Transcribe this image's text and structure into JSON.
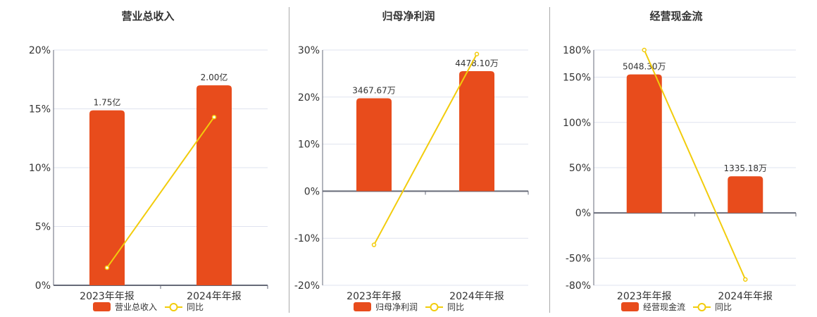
{
  "colors": {
    "bar": "#e84c1c",
    "line": "#f2cc0c",
    "grid": "#dfe3ef",
    "axis": "#666a78",
    "divider": "#aaaaaa"
  },
  "chart_data": [
    {
      "type": "bar+line",
      "title": "营业总收入",
      "categories": [
        "2023年年报",
        "2024年年报"
      ],
      "bar_series": {
        "name": "营业总收入",
        "values": [
          1.75,
          2.0
        ],
        "unit": "亿",
        "labels": [
          "1.75亿",
          "2.00亿"
        ]
      },
      "line_series": {
        "name": "同比",
        "values": [
          1.5,
          14.3
        ],
        "unit": "%"
      },
      "yticks": [
        "20%",
        "15%",
        "10%",
        "5%",
        "0%"
      ],
      "ylim": [
        0,
        20
      ],
      "grid": true,
      "legend": "bottom"
    },
    {
      "type": "bar+line",
      "title": "归母净利润",
      "categories": [
        "2023年年报",
        "2024年年报"
      ],
      "bar_series": {
        "name": "归母净利润",
        "values": [
          3467.67,
          4478.1
        ],
        "unit": "万",
        "labels": [
          "3467.67万",
          "4478.10万"
        ]
      },
      "line_series": {
        "name": "同比",
        "values": [
          -11.4,
          29.14
        ],
        "unit": "%"
      },
      "yticks": [
        "30%",
        "20%",
        "10%",
        "0%",
        "-10%",
        "-20%"
      ],
      "ylim": [
        -20,
        30
      ],
      "grid": true,
      "legend": "bottom"
    },
    {
      "type": "bar+line",
      "title": "经营现金流",
      "categories": [
        "2023年年报",
        "2024年年报"
      ],
      "bar_series": {
        "name": "经营现金流",
        "values": [
          5048.3,
          1335.18
        ],
        "unit": "万",
        "labels": [
          "5048.30万",
          "1335.18万"
        ]
      },
      "line_series": {
        "name": "同比",
        "values": [
          180,
          -73.55
        ],
        "unit": "%"
      },
      "yticks": [
        "180%",
        "150%",
        "100%",
        "50%",
        "0%",
        "-50%",
        "-80%"
      ],
      "ylim": [
        -80,
        180
      ],
      "grid": true,
      "legend": "bottom"
    }
  ]
}
